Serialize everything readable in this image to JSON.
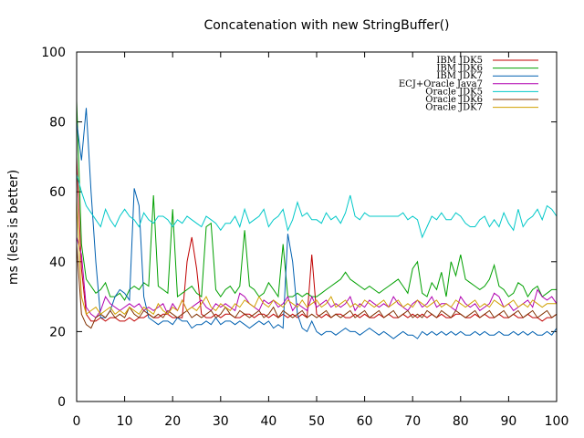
{
  "chart_data": {
    "type": "line",
    "title": "Concatenation with new StringBuffer()",
    "xlabel": "",
    "ylabel": "ms (less is better)",
    "xlim": [
      0,
      100
    ],
    "ylim": [
      0,
      100
    ],
    "xticks": [
      0,
      10,
      20,
      30,
      40,
      50,
      60,
      70,
      80,
      90,
      100
    ],
    "yticks": [
      0,
      20,
      40,
      60,
      80,
      100
    ],
    "grid": false,
    "legend": "top-right",
    "series": [
      {
        "name": "IBM JDK5",
        "color": "#c00000",
        "values": [
          70,
          38,
          25,
          23,
          23,
          24,
          23,
          24,
          24,
          23,
          23,
          24,
          23,
          24,
          24,
          25,
          24,
          24,
          25,
          25,
          24,
          24,
          24,
          40,
          47,
          38,
          25,
          24,
          24,
          25,
          24,
          25,
          25,
          24,
          24,
          25,
          25,
          24,
          25,
          25,
          24,
          25,
          24,
          25,
          24,
          25,
          24,
          25,
          24,
          42,
          25,
          24,
          25,
          24,
          25,
          25,
          24,
          24,
          25,
          24,
          25,
          24,
          24,
          25,
          24,
          25,
          24,
          24,
          25,
          24,
          25,
          24,
          25,
          24,
          25,
          24,
          25,
          24,
          24,
          25,
          25,
          24,
          24,
          25,
          24,
          25,
          24,
          24,
          25,
          24,
          24,
          25,
          24,
          24,
          25,
          24,
          24,
          23,
          24,
          24,
          25
        ]
      },
      {
        "name": "IBM JDK6",
        "color": "#00a000",
        "values": [
          86,
          45,
          35,
          33,
          31,
          32,
          34,
          30,
          30,
          31,
          29,
          32,
          33,
          32,
          34,
          33,
          59,
          33,
          32,
          31,
          55,
          30,
          31,
          32,
          33,
          31,
          30,
          50,
          51,
          32,
          30,
          32,
          33,
          31,
          33,
          49,
          33,
          32,
          30,
          31,
          34,
          32,
          30,
          45,
          30,
          30,
          31,
          30,
          31,
          30,
          30,
          31,
          32,
          33,
          34,
          35,
          37,
          35,
          34,
          33,
          32,
          33,
          32,
          31,
          32,
          33,
          34,
          35,
          33,
          31,
          38,
          40,
          31,
          30,
          34,
          32,
          37,
          30,
          40,
          36,
          42,
          35,
          34,
          33,
          32,
          33,
          35,
          39,
          33,
          32,
          30,
          31,
          34,
          33,
          30,
          32,
          33,
          30,
          31,
          32,
          32
        ]
      },
      {
        "name": "IBM JDK7",
        "color": "#0060b0",
        "values": [
          80,
          69,
          84,
          60,
          40,
          24,
          24,
          26,
          30,
          32,
          31,
          29,
          61,
          56,
          30,
          24,
          23,
          22,
          23,
          23,
          22,
          24,
          23,
          23,
          21,
          22,
          22,
          23,
          22,
          24,
          22,
          23,
          23,
          22,
          23,
          22,
          21,
          22,
          23,
          22,
          23,
          21,
          22,
          21,
          48,
          40,
          25,
          21,
          20,
          23,
          20,
          19,
          20,
          20,
          19,
          20,
          21,
          20,
          20,
          19,
          20,
          21,
          20,
          19,
          20,
          19,
          18,
          19,
          20,
          19,
          19,
          18,
          20,
          19,
          20,
          19,
          20,
          19,
          20,
          19,
          20,
          19,
          19,
          20,
          19,
          20,
          19,
          19,
          20,
          19,
          19,
          20,
          19,
          20,
          19,
          20,
          19,
          19,
          20,
          19,
          21
        ]
      },
      {
        "name": "ECJ+Oracle Java7",
        "color": "#b000b0",
        "values": [
          47,
          42,
          27,
          25,
          24,
          26,
          30,
          28,
          27,
          26,
          27,
          28,
          27,
          28,
          26,
          27,
          26,
          27,
          28,
          25,
          28,
          26,
          29,
          26,
          27,
          28,
          29,
          27,
          26,
          28,
          27,
          28,
          27,
          26,
          31,
          30,
          28,
          27,
          26,
          29,
          28,
          29,
          27,
          28,
          30,
          26,
          28,
          27,
          26,
          30,
          27,
          28,
          29,
          27,
          28,
          27,
          28,
          30,
          26,
          28,
          27,
          29,
          28,
          27,
          28,
          27,
          30,
          28,
          27,
          26,
          28,
          29,
          27,
          28,
          30,
          27,
          28,
          28,
          27,
          26,
          30,
          28,
          27,
          28,
          26,
          27,
          28,
          31,
          30,
          27,
          28,
          26,
          27,
          28,
          29,
          27,
          32,
          30,
          29,
          30,
          28
        ]
      },
      {
        "name": "Oracle JDK5",
        "color": "#00c8c8",
        "values": [
          65,
          60,
          56,
          54,
          52,
          50,
          55,
          52,
          50,
          53,
          55,
          53,
          52,
          50,
          54,
          52,
          51,
          53,
          53,
          52,
          50,
          52,
          51,
          53,
          52,
          51,
          50,
          53,
          52,
          51,
          49,
          51,
          51,
          53,
          50,
          55,
          51,
          52,
          53,
          55,
          50,
          52,
          53,
          55,
          49,
          52,
          57,
          53,
          54,
          52,
          52,
          51,
          54,
          52,
          53,
          51,
          54,
          59,
          53,
          52,
          54,
          53,
          53,
          53,
          53,
          53,
          53,
          53,
          54,
          52,
          53,
          52,
          47,
          50,
          53,
          52,
          54,
          52,
          52,
          54,
          53,
          51,
          50,
          50,
          52,
          53,
          50,
          52,
          50,
          54,
          51,
          49,
          55,
          50,
          52,
          53,
          55,
          52,
          56,
          55,
          53
        ]
      },
      {
        "name": "Oracle JDK6",
        "color": "#803000",
        "values": [
          45,
          25,
          22,
          21,
          24,
          25,
          24,
          26,
          24,
          25,
          24,
          27,
          25,
          24,
          26,
          25,
          24,
          25,
          24,
          26,
          25,
          24,
          25,
          26,
          24,
          25,
          24,
          25,
          26,
          24,
          25,
          27,
          25,
          24,
          26,
          25,
          24,
          25,
          26,
          24,
          25,
          27,
          24,
          26,
          25,
          24,
          25,
          26,
          24,
          25,
          24,
          25,
          26,
          24,
          25,
          24,
          25,
          26,
          24,
          25,
          26,
          24,
          25,
          26,
          24,
          25,
          26,
          24,
          25,
          26,
          24,
          25,
          24,
          26,
          25,
          24,
          26,
          25,
          24,
          26,
          25,
          24,
          25,
          26,
          24,
          25,
          26,
          24,
          25,
          26,
          24,
          25,
          26,
          24,
          25,
          26,
          24,
          25,
          26,
          24,
          25
        ]
      },
      {
        "name": "Oracle JDK7",
        "color": "#d0a000",
        "values": [
          58,
          30,
          25,
          26,
          27,
          25,
          26,
          27,
          25,
          26,
          25,
          27,
          26,
          25,
          27,
          26,
          25,
          28,
          26,
          25,
          27,
          26,
          29,
          26,
          27,
          26,
          28,
          30,
          27,
          26,
          28,
          27,
          26,
          28,
          27,
          29,
          28,
          27,
          30,
          28,
          27,
          29,
          28,
          27,
          29,
          28,
          27,
          29,
          27,
          28,
          29,
          27,
          28,
          30,
          27,
          28,
          29,
          27,
          28,
          27,
          29,
          28,
          27,
          28,
          29,
          27,
          28,
          29,
          27,
          28,
          27,
          29,
          28,
          27,
          28,
          29,
          27,
          28,
          27,
          29,
          28,
          27,
          28,
          29,
          27,
          28,
          27,
          29,
          28,
          27,
          28,
          29,
          27,
          28,
          27,
          29,
          28,
          27,
          28,
          28,
          28
        ]
      }
    ]
  }
}
